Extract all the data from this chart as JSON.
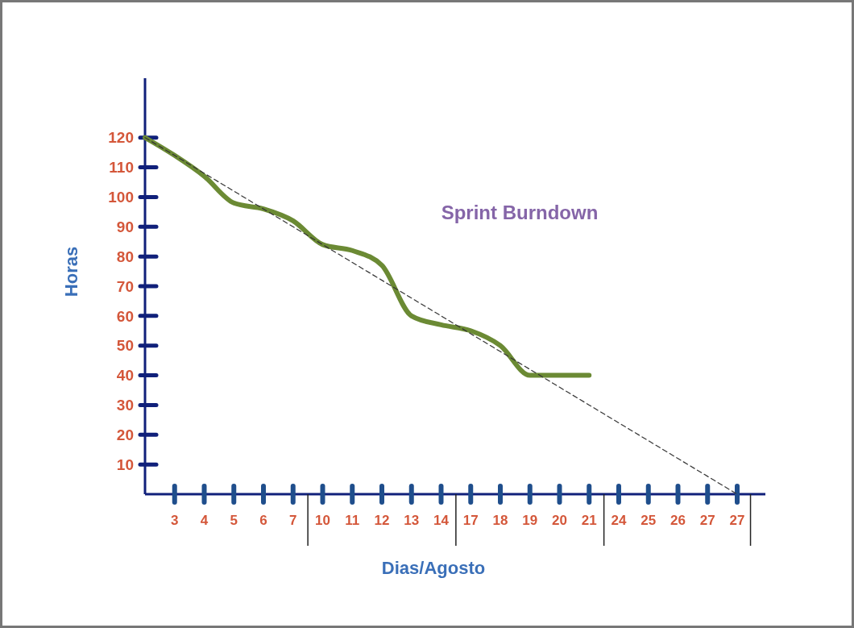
{
  "chart_data": {
    "type": "line",
    "title": "Sprint Burndown",
    "xlabel": "Dias/Agosto",
    "ylabel": "Horas",
    "categories": [
      null,
      "3",
      "4",
      "5",
      "6",
      "7",
      "10",
      "11",
      "12",
      "13",
      "14",
      "17",
      "18",
      "19",
      "20",
      "21",
      "24",
      "25",
      "26",
      "27",
      "27"
    ],
    "series": [
      {
        "color": "#6b8a34",
        "line_style": "solid",
        "values": [
          120,
          114,
          107,
          98,
          96,
          92,
          84,
          82,
          77,
          60,
          57,
          55,
          50,
          40,
          40,
          40,
          null,
          null,
          null,
          null,
          null
        ]
      },
      {
        "color": "#333333",
        "line_style": "dashed",
        "values": [
          120,
          114,
          108,
          102,
          96,
          90,
          84,
          78,
          72,
          66,
          60,
          54,
          48,
          42,
          36,
          30,
          24,
          18,
          12,
          6,
          0
        ]
      }
    ],
    "ylim": [
      0,
      140
    ],
    "yticks": [
      10,
      20,
      30,
      40,
      50,
      60,
      70,
      80,
      90,
      100,
      110,
      120
    ],
    "grid": false,
    "marker": "none"
  }
}
